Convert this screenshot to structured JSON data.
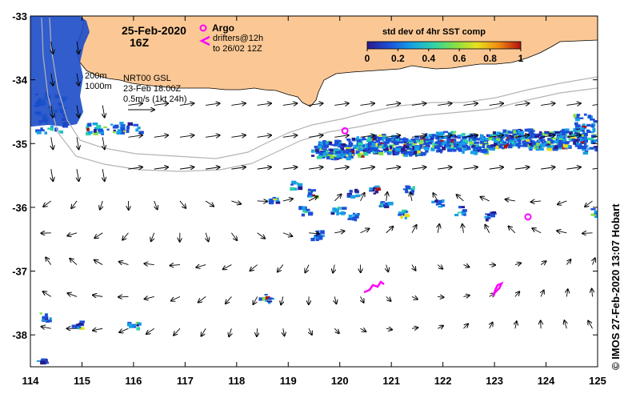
{
  "map": {
    "date": "25-Feb-2020",
    "hour": "16Z",
    "argo_label": "Argo",
    "drifters_line1": "drifters@12h",
    "drifters_line2": "to 26/02 12Z",
    "isobath_200": "200m",
    "isobath_1000": "1000m",
    "model_line1": "NRT00 GSL",
    "model_line2": "23-Feb 18:00Z",
    "scale_label": "0.5m/s (1kt 24h)",
    "credit": "© IMOS 27-Feb-2020 13:07 Hobart",
    "extent": {
      "lon": [
        114,
        125
      ],
      "lat": [
        -38.5,
        -33
      ]
    },
    "lon_ticks": [
      "114",
      "115",
      "116",
      "117",
      "118",
      "119",
      "120",
      "121",
      "122",
      "123",
      "124",
      "125"
    ],
    "lat_ticks": [
      "-33",
      "-34",
      "-35",
      "-36",
      "-37",
      "-38"
    ],
    "colors": {
      "land": "#fbc895",
      "argo": "#ff00ff",
      "drifter": "#ff00ff",
      "isobath": "#b4b4b4",
      "arrow": "#000000"
    },
    "colorbar": {
      "title": "std dev of 4hr SST comp",
      "ticks": [
        "0",
        "0.2",
        "0.4",
        "0.6",
        "0.8",
        "1"
      ],
      "stops": [
        "#2a1a8c",
        "#1c4fd8",
        "#16a0e6",
        "#2ed2a8",
        "#86e046",
        "#e8e020",
        "#f08a10",
        "#b01010"
      ]
    },
    "argo_floats": [
      {
        "lon": 120.1,
        "lat": -34.8
      },
      {
        "lon": 123.65,
        "lat": -36.15
      }
    ]
  }
}
